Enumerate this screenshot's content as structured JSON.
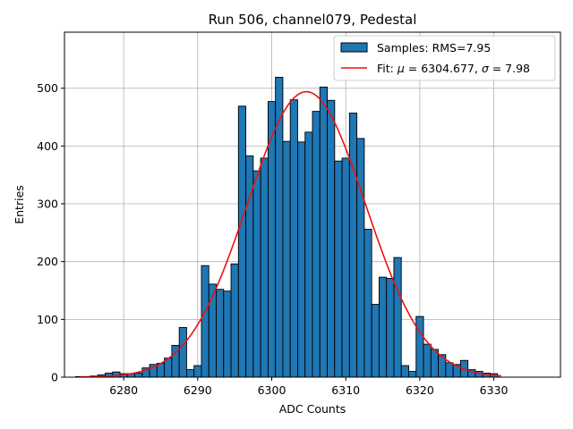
{
  "chart_data": {
    "type": "bar",
    "title": "Run 506, channel079, Pedestal",
    "xlabel": "ADC Counts",
    "ylabel": "Entries",
    "xlim": [
      6272,
      6339
    ],
    "ylim": [
      0,
      597
    ],
    "xticks": [
      6280,
      6290,
      6300,
      6310,
      6320,
      6330
    ],
    "yticks": [
      0,
      100,
      200,
      300,
      400,
      500
    ],
    "grid": true,
    "legend_position": "top-right",
    "bin_width": 1,
    "bins": [
      {
        "x": 6274,
        "y": 1
      },
      {
        "x": 6275,
        "y": 1
      },
      {
        "x": 6276,
        "y": 2
      },
      {
        "x": 6277,
        "y": 4
      },
      {
        "x": 6278,
        "y": 7
      },
      {
        "x": 6279,
        "y": 9
      },
      {
        "x": 6280,
        "y": 6
      },
      {
        "x": 6281,
        "y": 6
      },
      {
        "x": 6282,
        "y": 7
      },
      {
        "x": 6283,
        "y": 16
      },
      {
        "x": 6284,
        "y": 22
      },
      {
        "x": 6285,
        "y": 24
      },
      {
        "x": 6286,
        "y": 33
      },
      {
        "x": 6287,
        "y": 55
      },
      {
        "x": 6288,
        "y": 86
      },
      {
        "x": 6289,
        "y": 13
      },
      {
        "x": 6290,
        "y": 20
      },
      {
        "x": 6291,
        "y": 193
      },
      {
        "x": 6292,
        "y": 161
      },
      {
        "x": 6293,
        "y": 152
      },
      {
        "x": 6294,
        "y": 149
      },
      {
        "x": 6295,
        "y": 196
      },
      {
        "x": 6296,
        "y": 469
      },
      {
        "x": 6297,
        "y": 383
      },
      {
        "x": 6298,
        "y": 357
      },
      {
        "x": 6299,
        "y": 379
      },
      {
        "x": 6300,
        "y": 477
      },
      {
        "x": 6301,
        "y": 519
      },
      {
        "x": 6302,
        "y": 408
      },
      {
        "x": 6303,
        "y": 480
      },
      {
        "x": 6304,
        "y": 407
      },
      {
        "x": 6305,
        "y": 424
      },
      {
        "x": 6306,
        "y": 460
      },
      {
        "x": 6307,
        "y": 502
      },
      {
        "x": 6308,
        "y": 479
      },
      {
        "x": 6309,
        "y": 374
      },
      {
        "x": 6310,
        "y": 379
      },
      {
        "x": 6311,
        "y": 457
      },
      {
        "x": 6312,
        "y": 413
      },
      {
        "x": 6313,
        "y": 256
      },
      {
        "x": 6314,
        "y": 126
      },
      {
        "x": 6315,
        "y": 173
      },
      {
        "x": 6316,
        "y": 171
      },
      {
        "x": 6317,
        "y": 207
      },
      {
        "x": 6318,
        "y": 20
      },
      {
        "x": 6319,
        "y": 10
      },
      {
        "x": 6320,
        "y": 105
      },
      {
        "x": 6321,
        "y": 57
      },
      {
        "x": 6322,
        "y": 48
      },
      {
        "x": 6323,
        "y": 39
      },
      {
        "x": 6324,
        "y": 25
      },
      {
        "x": 6325,
        "y": 22
      },
      {
        "x": 6326,
        "y": 29
      },
      {
        "x": 6327,
        "y": 13
      },
      {
        "x": 6328,
        "y": 10
      },
      {
        "x": 6329,
        "y": 7
      },
      {
        "x": 6330,
        "y": 6
      }
    ],
    "fit": {
      "mu": 6304.677,
      "sigma": 7.98,
      "amplitude": 494,
      "x_range": [
        6274,
        6331
      ]
    },
    "series": [
      {
        "name": "Samples: RMS=7.95",
        "kind": "histogram",
        "color": "#1f77b4",
        "edge_color": "#000000"
      },
      {
        "name_prefix": "Fit: ",
        "name_mu_symbol": "μ",
        "name_mid": " = 6304.677, ",
        "name_sigma_symbol": "σ",
        "name_suffix": " = 7.98",
        "kind": "line",
        "color": "#ee1111"
      }
    ]
  }
}
